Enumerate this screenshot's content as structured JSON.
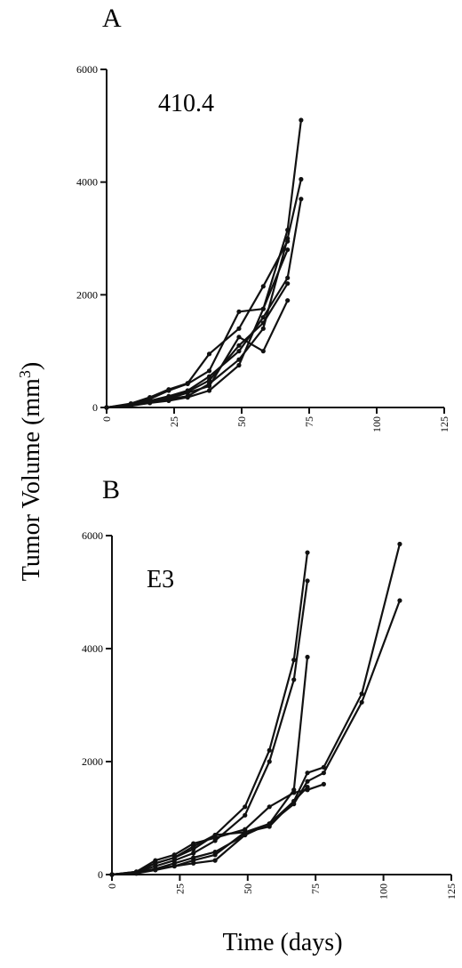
{
  "y_axis_title": "Tumor Volume (mm3)",
  "x_axis_title": "Time (days)",
  "chart_data": [
    {
      "type": "line",
      "panel_letter": "A",
      "panel_label": "410.4",
      "xlim": [
        0,
        125
      ],
      "ylim": [
        0,
        6000
      ],
      "x_ticks": [
        0,
        25,
        50,
        75,
        100,
        125
      ],
      "y_ticks": [
        0,
        2000,
        4000,
        6000
      ],
      "series": [
        {
          "points": [
            [
              0,
              0
            ],
            [
              9,
              60
            ],
            [
              16,
              120
            ],
            [
              23,
              200
            ],
            [
              30,
              300
            ],
            [
              38,
              550
            ],
            [
              49,
              1000
            ],
            [
              58,
              1600
            ],
            [
              67,
              2300
            ],
            [
              72,
              3700
            ]
          ]
        },
        {
          "points": [
            [
              0,
              0
            ],
            [
              9,
              40
            ],
            [
              16,
              100
            ],
            [
              23,
              150
            ],
            [
              30,
              200
            ],
            [
              38,
              420
            ],
            [
              49,
              850
            ],
            [
              58,
              1400
            ],
            [
              67,
              3000
            ],
            [
              72,
              4050
            ]
          ]
        },
        {
          "points": [
            [
              0,
              0
            ],
            [
              9,
              30
            ],
            [
              16,
              80
            ],
            [
              23,
              120
            ],
            [
              30,
              180
            ],
            [
              38,
              300
            ],
            [
              49,
              750
            ],
            [
              58,
              1750
            ],
            [
              67,
              3150
            ],
            [
              72,
              5100
            ]
          ]
        },
        {
          "points": [
            [
              0,
              0
            ],
            [
              9,
              50
            ],
            [
              16,
              150
            ],
            [
              23,
              300
            ],
            [
              30,
              420
            ],
            [
              38,
              650
            ],
            [
              49,
              1700
            ],
            [
              58,
              1750
            ],
            [
              67,
              2800
            ]
          ]
        },
        {
          "points": [
            [
              0,
              0
            ],
            [
              9,
              70
            ],
            [
              16,
              180
            ],
            [
              23,
              320
            ],
            [
              30,
              430
            ],
            [
              38,
              950
            ],
            [
              49,
              1400
            ],
            [
              58,
              2150
            ],
            [
              67,
              2950
            ]
          ]
        },
        {
          "points": [
            [
              0,
              0
            ],
            [
              9,
              40
            ],
            [
              16,
              90
            ],
            [
              23,
              160
            ],
            [
              30,
              260
            ],
            [
              38,
              380
            ],
            [
              49,
              1250
            ],
            [
              58,
              1000
            ],
            [
              67,
              1900
            ]
          ]
        },
        {
          "points": [
            [
              0,
              0
            ],
            [
              9,
              50
            ],
            [
              16,
              110
            ],
            [
              23,
              180
            ],
            [
              30,
              280
            ],
            [
              38,
              480
            ],
            [
              49,
              1100
            ],
            [
              58,
              1500
            ],
            [
              67,
              2200
            ]
          ]
        }
      ]
    },
    {
      "type": "line",
      "panel_letter": "B",
      "panel_label": "E3",
      "xlim": [
        0,
        125
      ],
      "ylim": [
        0,
        6000
      ],
      "x_ticks": [
        0,
        25,
        50,
        75,
        100,
        125
      ],
      "y_ticks": [
        0,
        2000,
        4000,
        6000
      ],
      "series": [
        {
          "points": [
            [
              0,
              0
            ],
            [
              9,
              50
            ],
            [
              16,
              200
            ],
            [
              23,
              300
            ],
            [
              30,
              450
            ],
            [
              38,
              700
            ],
            [
              49,
              1200
            ],
            [
              58,
              2200
            ],
            [
              67,
              3800
            ],
            [
              72,
              5700
            ]
          ]
        },
        {
          "points": [
            [
              0,
              0
            ],
            [
              9,
              40
            ],
            [
              16,
              150
            ],
            [
              23,
              250
            ],
            [
              30,
              380
            ],
            [
              38,
              600
            ],
            [
              49,
              1050
            ],
            [
              58,
              2000
            ],
            [
              67,
              3450
            ],
            [
              72,
              5200
            ]
          ]
        },
        {
          "points": [
            [
              0,
              0
            ],
            [
              9,
              30
            ],
            [
              16,
              100
            ],
            [
              23,
              150
            ],
            [
              30,
              250
            ],
            [
              38,
              350
            ],
            [
              49,
              750
            ],
            [
              58,
              900
            ],
            [
              67,
              1500
            ],
            [
              72,
              3850
            ]
          ]
        },
        {
          "points": [
            [
              0,
              0
            ],
            [
              9,
              40
            ],
            [
              16,
              200
            ],
            [
              23,
              300
            ],
            [
              30,
              500
            ],
            [
              38,
              700
            ],
            [
              49,
              750
            ],
            [
              58,
              850
            ],
            [
              67,
              1300
            ],
            [
              72,
              1800
            ],
            [
              78,
              1900
            ],
            [
              92,
              3200
            ],
            [
              106,
              5850
            ]
          ]
        },
        {
          "points": [
            [
              0,
              0
            ],
            [
              9,
              30
            ],
            [
              16,
              100
            ],
            [
              23,
              200
            ],
            [
              30,
              300
            ],
            [
              38,
              400
            ],
            [
              49,
              700
            ],
            [
              58,
              900
            ],
            [
              67,
              1250
            ],
            [
              72,
              1650
            ],
            [
              78,
              1800
            ],
            [
              92,
              3050
            ],
            [
              106,
              4850
            ]
          ]
        },
        {
          "points": [
            [
              0,
              0
            ],
            [
              9,
              50
            ],
            [
              16,
              250
            ],
            [
              23,
              350
            ],
            [
              30,
              550
            ],
            [
              38,
              650
            ],
            [
              49,
              800
            ],
            [
              58,
              1200
            ],
            [
              67,
              1450
            ],
            [
              72,
              1500
            ],
            [
              78,
              1600
            ]
          ]
        },
        {
          "points": [
            [
              0,
              0
            ],
            [
              9,
              20
            ],
            [
              16,
              80
            ],
            [
              23,
              150
            ],
            [
              30,
              200
            ],
            [
              38,
              250
            ],
            [
              49,
              700
            ],
            [
              58,
              900
            ],
            [
              67,
              1300
            ],
            [
              72,
              1550
            ]
          ]
        }
      ]
    }
  ]
}
